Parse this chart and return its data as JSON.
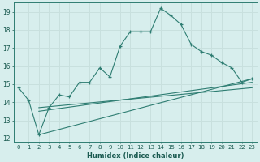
{
  "xlabel": "Humidex (Indice chaleur)",
  "xlim": [
    -0.5,
    23.5
  ],
  "ylim": [
    11.8,
    19.5
  ],
  "yticks": [
    12,
    13,
    14,
    15,
    16,
    17,
    18,
    19
  ],
  "xticks": [
    0,
    1,
    2,
    3,
    4,
    5,
    6,
    7,
    8,
    9,
    10,
    11,
    12,
    13,
    14,
    15,
    16,
    17,
    18,
    19,
    20,
    21,
    22,
    23
  ],
  "xtick_labels": [
    "0",
    "1",
    "2",
    "3",
    "4",
    "5",
    "6",
    "7",
    "8",
    "9",
    "10",
    "11",
    "12",
    "13",
    "14",
    "15",
    "16",
    "17",
    "18",
    "19",
    "20",
    "21",
    "22",
    "23"
  ],
  "bg_color": "#d7eeed",
  "line_color": "#2e7d72",
  "grid_color": "#c8e0de",
  "main_x": [
    0,
    1,
    2,
    3,
    4,
    5,
    6,
    7,
    8,
    9,
    10,
    11,
    12,
    13,
    14,
    15,
    16,
    17,
    18,
    19,
    20,
    21,
    22,
    23
  ],
  "main_y": [
    14.8,
    14.1,
    12.2,
    13.7,
    14.4,
    14.3,
    15.1,
    15.1,
    15.9,
    15.4,
    17.1,
    17.9,
    17.9,
    17.9,
    19.2,
    18.8,
    18.3,
    17.2,
    16.8,
    16.6,
    16.2,
    15.9,
    15.1,
    15.3
  ],
  "trend1_x": [
    2,
    23
  ],
  "trend1_y": [
    12.2,
    15.3
  ],
  "trend2_x": [
    2,
    23
  ],
  "trend2_y": [
    13.5,
    15.1
  ],
  "trend3_x": [
    2,
    23
  ],
  "trend3_y": [
    13.7,
    14.8
  ]
}
